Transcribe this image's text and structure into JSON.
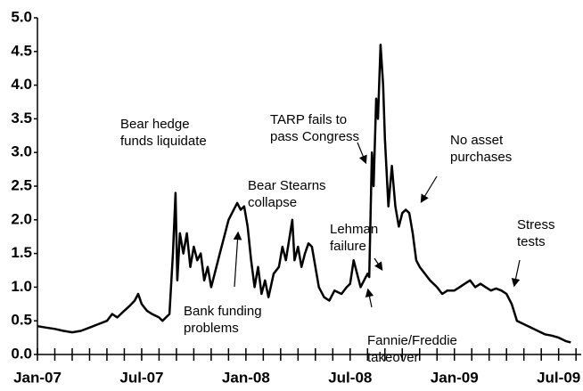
{
  "chart_data": {
    "type": "line",
    "xlim": [
      0,
      31.3
    ],
    "ylim": [
      0,
      5
    ],
    "yticks": [
      {
        "value": 0,
        "label": "0.0"
      },
      0.5,
      {
        "value": 1,
        "label": "1.0"
      },
      1.5,
      {
        "value": 2,
        "label": "2.0"
      },
      2.5,
      {
        "value": 3,
        "label": "3.0"
      },
      3.5,
      {
        "value": 4,
        "label": "4.0"
      },
      4.5,
      {
        "value": 5,
        "label": "5.0"
      }
    ],
    "xticks": [
      {
        "value": 0,
        "label": "Jan-07"
      },
      {
        "value": 6,
        "label": "Jul-07"
      },
      {
        "value": 12,
        "label": "Jan-08"
      },
      {
        "value": 18,
        "label": "Jul-08"
      },
      {
        "value": 24,
        "label": "Jan-09"
      },
      {
        "value": 30,
        "label": "Jul-09"
      }
    ],
    "xminor_ticks": [
      1,
      2,
      3,
      4,
      5,
      7,
      8,
      9,
      10,
      11,
      13,
      14,
      15,
      16,
      17,
      19,
      20,
      21,
      22,
      23,
      25,
      26,
      27,
      28,
      29,
      31
    ],
    "series": [
      {
        "color": "#000000",
        "x": [
          0,
          0.5,
          1,
          1.5,
          2,
          2.5,
          3,
          3.5,
          4,
          4.3,
          4.6,
          5,
          5.3,
          5.6,
          5.8,
          6,
          6.3,
          6.6,
          7,
          7.2,
          7.4,
          7.6,
          7.8,
          7.95,
          8.05,
          8.2,
          8.4,
          8.6,
          8.8,
          9,
          9.2,
          9.4,
          9.6,
          9.8,
          10,
          10.2,
          10.5,
          10.8,
          11,
          11.2,
          11.5,
          11.7,
          11.9,
          12.1,
          12.3,
          12.5,
          12.7,
          12.9,
          13.1,
          13.3,
          13.6,
          13.9,
          14.1,
          14.3,
          14.67,
          14.8,
          15,
          15.2,
          15.4,
          15.6,
          15.8,
          16,
          16.2,
          16.5,
          16.8,
          17.1,
          17.5,
          17.8,
          18,
          18.2,
          18.4,
          18.6,
          18.8,
          19,
          19.1,
          19.25,
          19.35,
          19.5,
          19.6,
          19.75,
          19.9,
          20,
          20.2,
          20.4,
          20.6,
          20.8,
          21,
          21.2,
          21.4,
          21.6,
          21.8,
          22,
          22.3,
          22.6,
          23,
          23.3,
          23.6,
          24,
          24.3,
          24.6,
          24.9,
          25.2,
          25.5,
          25.8,
          26.1,
          26.4,
          26.7,
          27,
          27.3,
          27.6,
          28,
          28.4,
          28.8,
          29.2,
          29.6,
          30,
          30.4,
          30.7
        ],
        "values": [
          0.42,
          0.4,
          0.38,
          0.35,
          0.33,
          0.35,
          0.4,
          0.45,
          0.5,
          0.6,
          0.55,
          0.65,
          0.72,
          0.8,
          0.9,
          0.75,
          0.65,
          0.6,
          0.55,
          0.5,
          0.55,
          0.6,
          1.5,
          2.4,
          1.1,
          1.8,
          1.5,
          1.8,
          1.3,
          1.6,
          1.4,
          1.5,
          1.1,
          1.3,
          1.0,
          1.2,
          1.5,
          1.8,
          2.0,
          2.1,
          2.25,
          2.15,
          2.2,
          1.9,
          1.4,
          1.0,
          1.3,
          0.9,
          1.1,
          0.85,
          1.2,
          1.3,
          1.6,
          1.4,
          2.0,
          1.4,
          1.6,
          1.3,
          1.5,
          1.65,
          1.6,
          1.3,
          1.0,
          0.85,
          0.8,
          0.95,
          0.9,
          1.0,
          1.05,
          1.4,
          1.2,
          1.0,
          1.1,
          1.2,
          1.15,
          3.0,
          2.5,
          3.8,
          3.5,
          4.6,
          4.0,
          3.2,
          2.2,
          2.8,
          2.2,
          1.9,
          2.1,
          2.15,
          2.1,
          1.8,
          1.4,
          1.3,
          1.2,
          1.1,
          1.0,
          0.9,
          0.95,
          0.95,
          1.0,
          1.05,
          1.1,
          1.0,
          1.05,
          1.0,
          0.95,
          0.98,
          0.95,
          0.9,
          0.75,
          0.5,
          0.45,
          0.4,
          0.35,
          0.3,
          0.28,
          0.25,
          0.2,
          0.18
        ]
      }
    ],
    "annotations": [
      {
        "lines": [
          "Bear hedge",
          "funds liquidate"
        ]
      },
      {
        "lines": [
          "Bear Stearns",
          "collapse"
        ]
      },
      {
        "lines": [
          "Bank funding",
          "problems"
        ]
      },
      {
        "lines": [
          "Lehman",
          "failure"
        ]
      },
      {
        "lines": [
          "TARP fails to",
          "pass Congress"
        ]
      },
      {
        "lines": [
          "No asset",
          "purchases"
        ]
      },
      {
        "lines": [
          "Fannie/Freddie",
          "takeover"
        ]
      },
      {
        "lines": [
          "Stress",
          "tests"
        ]
      }
    ]
  }
}
